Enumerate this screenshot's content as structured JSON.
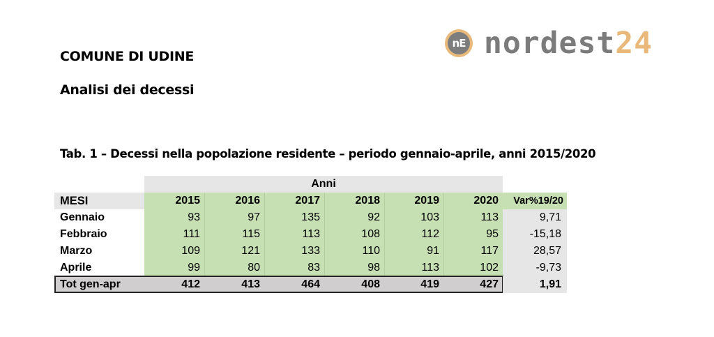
{
  "header": {
    "title": "COMUNE DI UDINE",
    "subtitle": "Analisi dei decessi",
    "caption": "Tab. 1 – Decessi nella popolazione residente – periodo gennaio-aprile, anni 2015/2020"
  },
  "logo": {
    "mark": "nE",
    "text": "nordest",
    "number": "24",
    "colors": {
      "grey": "#7b7b7b",
      "accent": "#e8b97a"
    }
  },
  "table": {
    "group_header": "Anni",
    "row_header": "MESI",
    "columns": [
      "2015",
      "2016",
      "2017",
      "2018",
      "2019",
      "2020"
    ],
    "var_header": "Var%19/20",
    "rows": [
      {
        "label": "Gennaio",
        "values": [
          "93",
          "97",
          "135",
          "92",
          "103",
          "113"
        ],
        "var": "9,71"
      },
      {
        "label": "Febbraio",
        "values": [
          "111",
          "115",
          "113",
          "108",
          "112",
          "95"
        ],
        "var": "-15,18"
      },
      {
        "label": "Marzo",
        "values": [
          "109",
          "121",
          "133",
          "110",
          "91",
          "117"
        ],
        "var": "28,57"
      },
      {
        "label": "Aprile",
        "values": [
          "99",
          "80",
          "83",
          "98",
          "113",
          "102"
        ],
        "var": "-9,73"
      }
    ],
    "total": {
      "label": "Tot gen-apr",
      "values": [
        "412",
        "413",
        "464",
        "408",
        "419",
        "427"
      ],
      "var": "1,91"
    },
    "colors": {
      "green": "#c6e0b4",
      "grey": "#e7e6e6",
      "total_grey": "#d0cece"
    }
  }
}
